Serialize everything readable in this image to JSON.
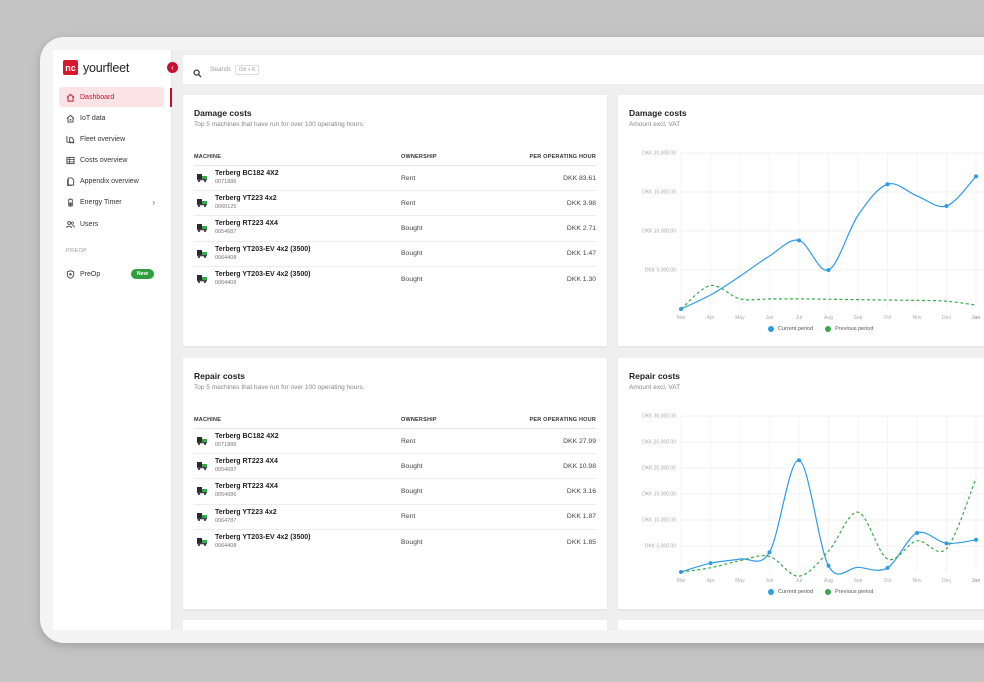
{
  "app": {
    "logo_mark": "nc",
    "logo_text": "yourfleet"
  },
  "sidebar": {
    "items": [
      {
        "label": "Dashboard",
        "icon": "home-icon",
        "active": true
      },
      {
        "label": "IoT data",
        "icon": "iot-icon"
      },
      {
        "label": "Fleet overview",
        "icon": "forklift-icon"
      },
      {
        "label": "Costs overview",
        "icon": "table-icon"
      },
      {
        "label": "Appendix overview",
        "icon": "document-icon"
      },
      {
        "label": "Energy Timer",
        "icon": "battery-icon",
        "has_submenu": true
      },
      {
        "label": "Users",
        "icon": "users-icon"
      }
    ],
    "section_label": "PREOP",
    "preop": {
      "label": "PreOp",
      "icon": "shield-icon",
      "badge": "New"
    }
  },
  "search": {
    "placeholder": "Search",
    "shortcut": "Ctrl + K"
  },
  "table_headers": {
    "machine": "MACHINE",
    "ownership": "OWNERSHIP",
    "per_hour": "PER OPERATING HOUR"
  },
  "damage_table": {
    "title": "Damage costs",
    "subtitle": "Top 5 machines that have run for over 100 operating hours.",
    "rows": [
      {
        "name": "Terberg BC182 4X2",
        "id": "0071886",
        "ownership": "Rent",
        "cost": "DKK 83.61"
      },
      {
        "name": "Terberg YT223 4x2",
        "id": "0060125",
        "ownership": "Rent",
        "cost": "DKK 3.98"
      },
      {
        "name": "Terberg RT223 4X4",
        "id": "0054687",
        "ownership": "Bought",
        "cost": "DKK 2.71"
      },
      {
        "name": "Terberg YT203-EV 4x2 (3500)",
        "id": "0064408",
        "ownership": "Bought",
        "cost": "DKK 1.47"
      },
      {
        "name": "Terberg YT203-EV 4x2 (3500)",
        "id": "0064409",
        "ownership": "Bought",
        "cost": "DKK 1.30"
      }
    ]
  },
  "repair_table": {
    "title": "Repair costs",
    "subtitle": "Top 5 machines that have run for over 100 operating hours.",
    "rows": [
      {
        "name": "Terberg BC182 4X2",
        "id": "0071886",
        "ownership": "Rent",
        "cost": "DKK 27.99"
      },
      {
        "name": "Terberg RT223 4X4",
        "id": "0054687",
        "ownership": "Bought",
        "cost": "DKK 10.98"
      },
      {
        "name": "Terberg RT223 4X4",
        "id": "0054686",
        "ownership": "Bought",
        "cost": "DKK 3.16"
      },
      {
        "name": "Terberg YT223 4x2",
        "id": "0064787",
        "ownership": "Rent",
        "cost": "DKK 1.87"
      },
      {
        "name": "Terberg YT203-EV 4x2 (3500)",
        "id": "0064408",
        "ownership": "Bought",
        "cost": "DKK 1.85"
      }
    ]
  },
  "chart_data": [
    {
      "type": "line",
      "title": "Damage costs",
      "subtitle": "Amount excl. VAT",
      "x": [
        "Mar",
        "Apr",
        "May",
        "Jun",
        "Jul",
        "Aug",
        "Sep",
        "Oct",
        "Nov",
        "Dec",
        "Jan"
      ],
      "ylim": [
        0,
        20000
      ],
      "yticks": [
        "DKK 5,000.00",
        "DKK 10,000.00",
        "DKK 15,000.00",
        "DKK 20,000.00"
      ],
      "ytick_values": [
        5000,
        10000,
        15000,
        20000
      ],
      "series": [
        {
          "name": "Current period",
          "color": "#2e9be8",
          "values": [
            0,
            1800,
            4200,
            6800,
            8800,
            5000,
            12000,
            16000,
            14500,
            13200,
            17000
          ],
          "markers": [
            0,
            4,
            5,
            7,
            9,
            10
          ]
        },
        {
          "name": "Previous period",
          "color": "#3aa84a",
          "dashed": true,
          "values": [
            0,
            3000,
            1300,
            1300,
            1300,
            1250,
            1200,
            1150,
            1100,
            1000,
            500
          ]
        }
      ],
      "legend": "bottom"
    },
    {
      "type": "line",
      "title": "Repair costs",
      "subtitle": "Amount excl. VAT",
      "x": [
        "Mar",
        "Apr",
        "May",
        "Jun",
        "Jul",
        "Aug",
        "Sep",
        "Oct",
        "Nov",
        "Dec",
        "Jan"
      ],
      "ylim": [
        0,
        30000
      ],
      "yticks": [
        "DKK 5,000.00",
        "DKK 10,000.00",
        "DKK 15,000.00",
        "DKK 20,000.00",
        "DKK 25,000.00",
        "DKK 30,000.00"
      ],
      "ytick_values": [
        5000,
        10000,
        15000,
        20000,
        25000,
        30000
      ],
      "series": [
        {
          "name": "Current period",
          "color": "#2e9be8",
          "values": [
            0,
            1700,
            2500,
            3800,
            21500,
            1200,
            900,
            800,
            7500,
            5500,
            6200
          ],
          "markers": [
            0,
            1,
            3,
            4,
            5,
            7,
            8,
            9,
            10
          ]
        },
        {
          "name": "Previous period",
          "color": "#3aa84a",
          "dashed": true,
          "values": [
            0,
            800,
            2200,
            3000,
            -800,
            4000,
            11500,
            2500,
            6000,
            4500,
            18000
          ]
        }
      ],
      "legend": "bottom"
    }
  ]
}
